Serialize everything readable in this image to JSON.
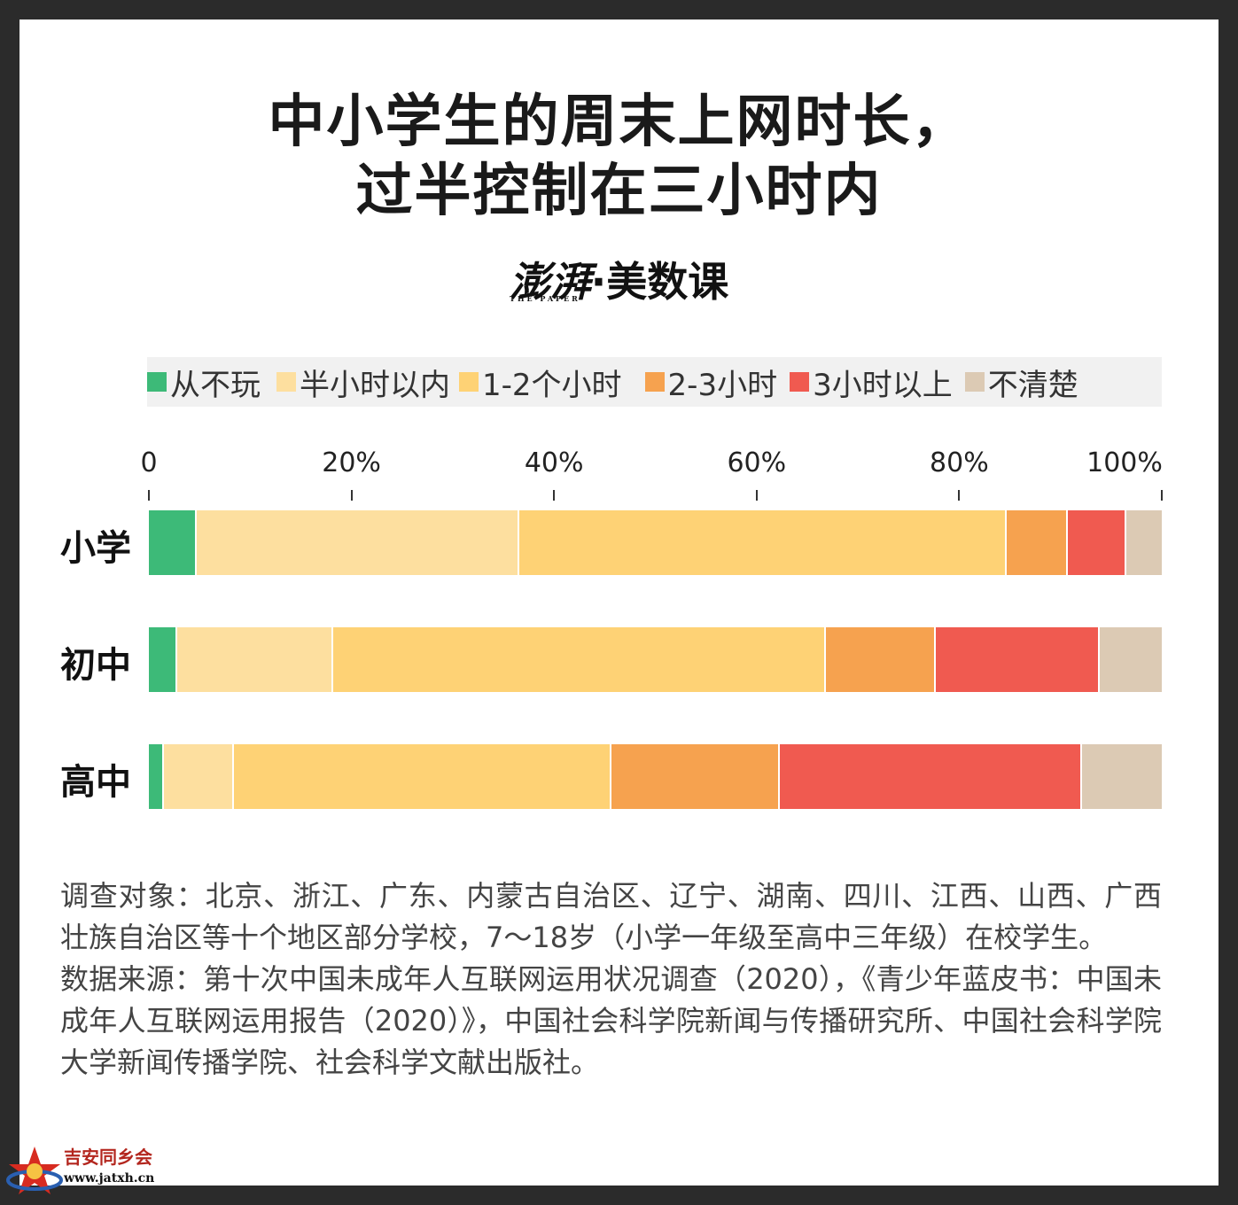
{
  "title_line1": "中小学生的周末上网时长，",
  "title_line2": "过半控制在三小时内",
  "brand": {
    "logo": "澎湃",
    "logo_sub": "THE PAPER",
    "separator": "·",
    "name": "美数课"
  },
  "chart_data": {
    "type": "bar",
    "orientation": "horizontal",
    "stacked": true,
    "title": "中小学生的周末上网时长，过半控制在三小时内",
    "xlim": [
      0,
      100
    ],
    "x_ticks": [
      "0",
      "20%",
      "40%",
      "60%",
      "80%",
      "100%"
    ],
    "x_tick_values": [
      0,
      20,
      40,
      60,
      80,
      100
    ],
    "legend_position": "top",
    "categories": [
      "小学",
      "初中",
      "高中"
    ],
    "series": [
      {
        "name": "从不玩",
        "color": "#3dba78",
        "values": [
          4.7,
          2.8,
          1.5
        ]
      },
      {
        "name": "半小时以内",
        "color": "#fddf9f",
        "values": [
          31.9,
          15.4,
          6.9
        ]
      },
      {
        "name": "1-2个小时",
        "color": "#fed275",
        "values": [
          48.1,
          48.6,
          37.3
        ]
      },
      {
        "name": "2-3小时",
        "color": "#f6a24f",
        "values": [
          6.0,
          10.9,
          16.6
        ]
      },
      {
        "name": "3小时以上",
        "color": "#f05a50",
        "values": [
          5.8,
          16.2,
          29.8
        ]
      },
      {
        "name": "不清楚",
        "color": "#dccab4",
        "values": [
          3.5,
          6.1,
          7.9
        ]
      }
    ]
  },
  "notes": {
    "survey": "调查对象：北京、浙江、广东、内蒙古自治区、辽宁、湖南、四川、江西、山西、广西壮族自治区等十个地区部分学校，7～18岁（小学一年级至高中三年级）在校学生。",
    "source": "数据来源：第十次中国未成年人互联网运用状况调查（2020），《青少年蓝皮书：中国未成年人互联网运用报告（2020）》，中国社会科学院新闻与传播研究所、中国社会科学院大学新闻传播学院、社会科学文献出版社。"
  },
  "watermark": {
    "text1": "吉安同乡会",
    "text2": "www.jatxh.cn"
  }
}
